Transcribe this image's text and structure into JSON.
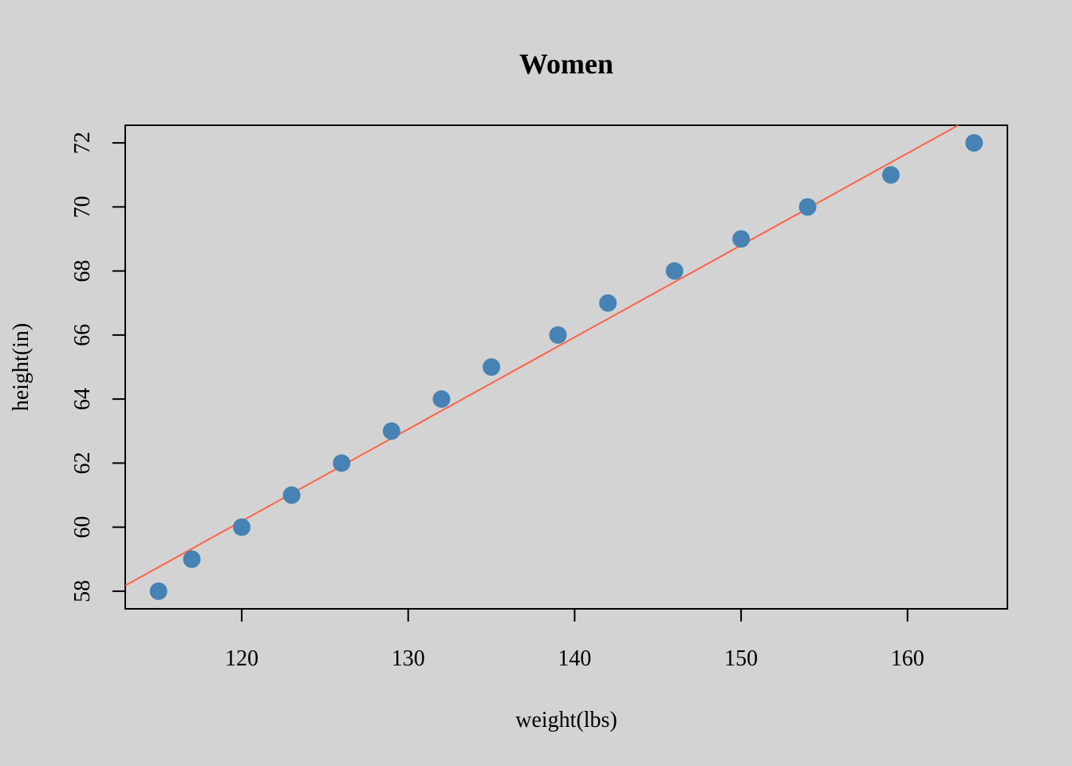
{
  "chart_data": {
    "type": "scatter",
    "title": "Women",
    "xlabel": "weight(lbs)",
    "ylabel": "height(in)",
    "xlim": [
      113,
      166
    ],
    "ylim": [
      57.45,
      72.55
    ],
    "x_ticks": [
      120,
      130,
      140,
      150,
      160
    ],
    "y_ticks": [
      58,
      60,
      62,
      64,
      66,
      68,
      70,
      72
    ],
    "grid": false,
    "legend": "none",
    "series": [
      {
        "x": [
          115,
          117,
          120,
          123,
          126,
          129,
          132,
          135,
          139,
          142,
          146,
          150,
          154,
          159,
          164
        ],
        "y": [
          58,
          59,
          60,
          61,
          62,
          63,
          64,
          65,
          66,
          67,
          68,
          69,
          70,
          71,
          72
        ],
        "color": "#4682b4"
      }
    ],
    "regression_line": {
      "intercept": 25.7235,
      "slope": 0.2872,
      "color": "#ff6347"
    }
  }
}
